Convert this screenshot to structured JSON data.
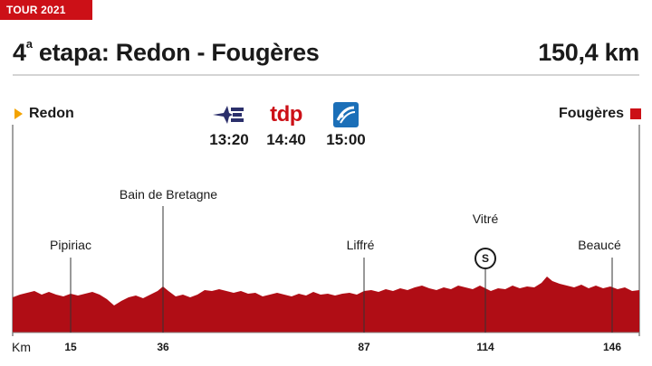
{
  "header": {
    "tag": "TOUR 2021",
    "title_prefix": "4",
    "title_sup": "a",
    "title_rest": " etapa: Redon - Fougères",
    "distance": "150,4 km"
  },
  "start": {
    "label": "Redon",
    "marker_color": "#f3a300"
  },
  "finish": {
    "label": "Fougères",
    "marker_color": "#cc1017"
  },
  "broadcasts": [
    {
      "logo": "eurosport-logo",
      "time": "13:20"
    },
    {
      "logo": "tdp-logo",
      "logo_text": "tdp",
      "time": "14:40"
    },
    {
      "logo": "cycling-app-logo",
      "time": "15:00"
    }
  ],
  "places": [
    {
      "name": "Pipiriac",
      "km": "15"
    },
    {
      "name": "Bain de Bretagne",
      "km": "36"
    },
    {
      "name": "Liffré",
      "km": "87"
    },
    {
      "name": "Vitré",
      "km": "114",
      "sprint": "S"
    },
    {
      "name": "Beaucé",
      "km": "146"
    }
  ],
  "axis": {
    "unit": "Km"
  },
  "colors": {
    "profile": "#b00d15",
    "accent": "#cc1017"
  }
}
